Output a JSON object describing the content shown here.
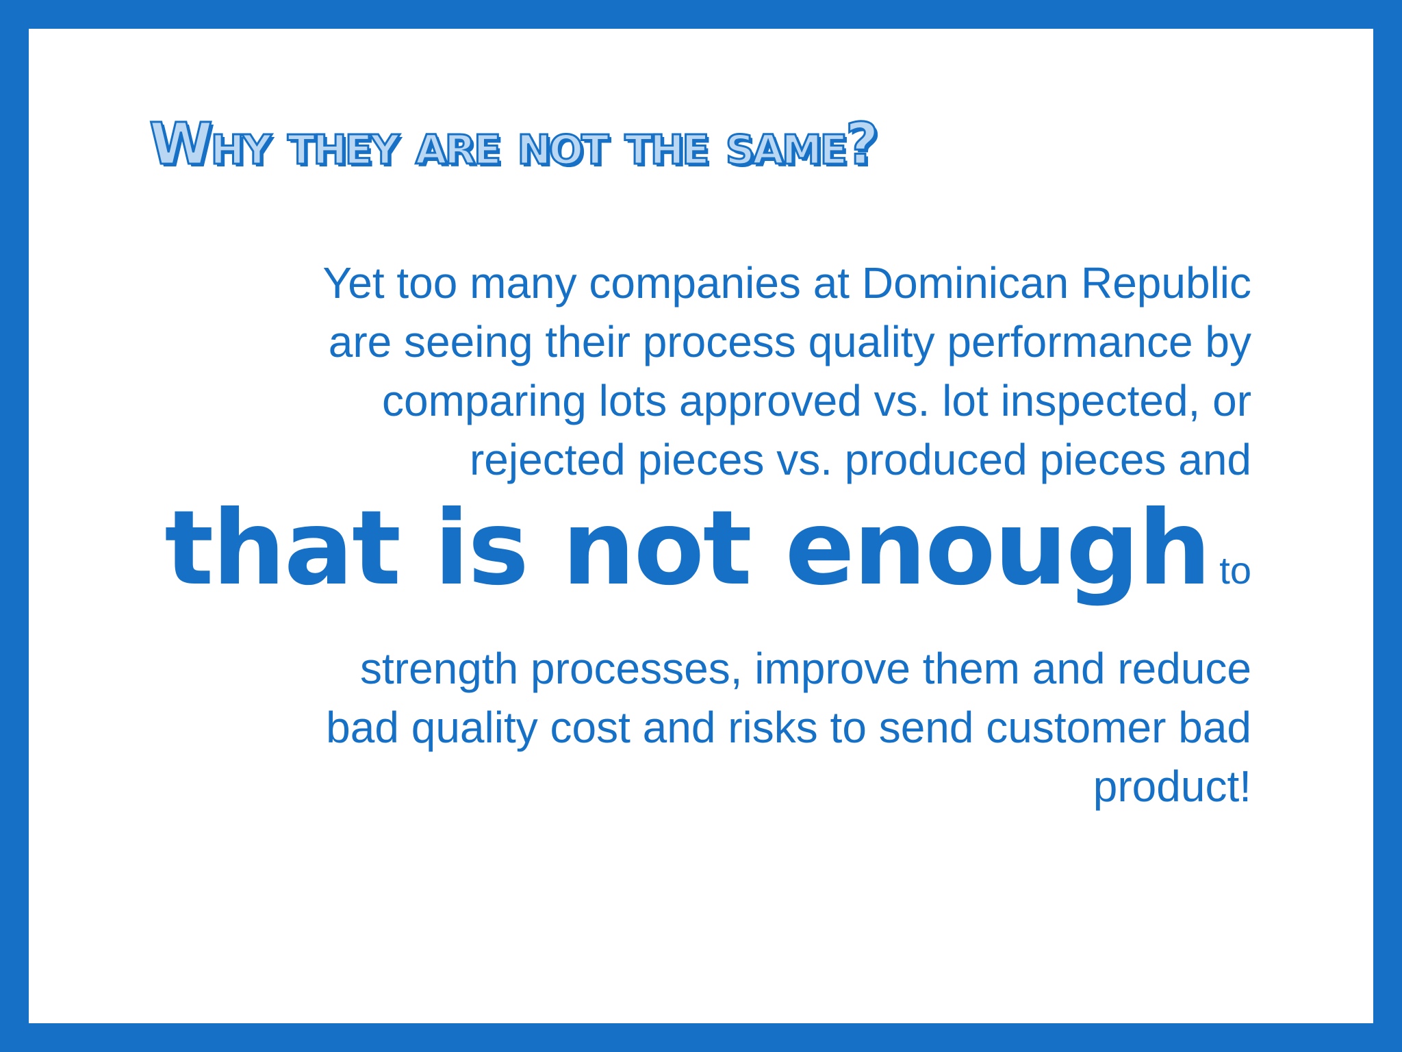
{
  "slide": {
    "title": "Why they are not the same?",
    "lines_before": [
      "Yet too many companies at Dominican Republic",
      "are seeing their process quality performance by",
      "comparing lots approved vs. lot inspected, or",
      "rejected pieces vs. produced pieces and"
    ],
    "emphasis": "that is not enough",
    "emphasis_tail": "to",
    "lines_after": [
      "strength processes, improve them and reduce",
      "bad quality cost and risks to send customer bad",
      "product!"
    ]
  },
  "colors": {
    "border": "#1671c6",
    "text": "#1671c6",
    "background": "#ffffff"
  }
}
